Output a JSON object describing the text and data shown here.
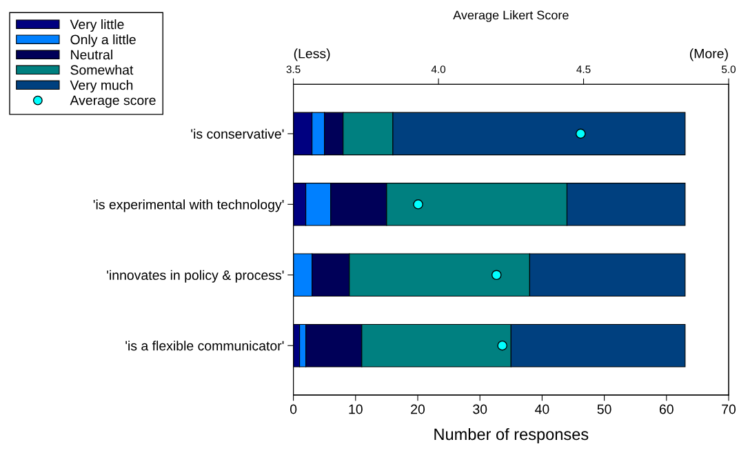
{
  "chart_data": {
    "type": "bar",
    "orientation": "horizontal",
    "stacked": true,
    "categories": [
      "'is conservative'",
      "'is experimental with technology'",
      "'innovates in policy & process'",
      "'is a flexible communicator'"
    ],
    "series": [
      {
        "name": "Very little",
        "color": "#000080",
        "values": [
          3,
          2,
          0,
          1
        ]
      },
      {
        "name": "Only a little",
        "color": "#0080ff",
        "values": [
          2,
          4,
          3,
          1
        ]
      },
      {
        "name": "Neutral",
        "color": "#000058",
        "values": [
          3,
          9,
          6,
          9
        ]
      },
      {
        "name": "Somewhat",
        "color": "#008080",
        "values": [
          8,
          29,
          29,
          24
        ]
      },
      {
        "name": "Very much",
        "color": "#00407f",
        "values": [
          47,
          19,
          25,
          28
        ]
      },
      {
        "name": "Average score",
        "type": "scatter",
        "axis": "x2",
        "marker": "circle",
        "color": "#00ffff",
        "values": [
          4.49,
          3.93,
          4.2,
          4.22
        ]
      }
    ],
    "xlabel": "Number of responses",
    "xlim": [
      0,
      70
    ],
    "xticks": [
      0,
      10,
      20,
      30,
      40,
      50,
      60,
      70
    ],
    "x2label": "Average Likert Score",
    "x2lim": [
      3.5,
      5.0
    ],
    "x2ticks": [
      3.5,
      {
        "value": 4,
        "label": "4.0"
      },
      4.5,
      {
        "value": 5,
        "label": "5.0"
      }
    ],
    "annotations": [
      "(Less)",
      "(More)"
    ],
    "grid": false,
    "legend": "top left"
  }
}
